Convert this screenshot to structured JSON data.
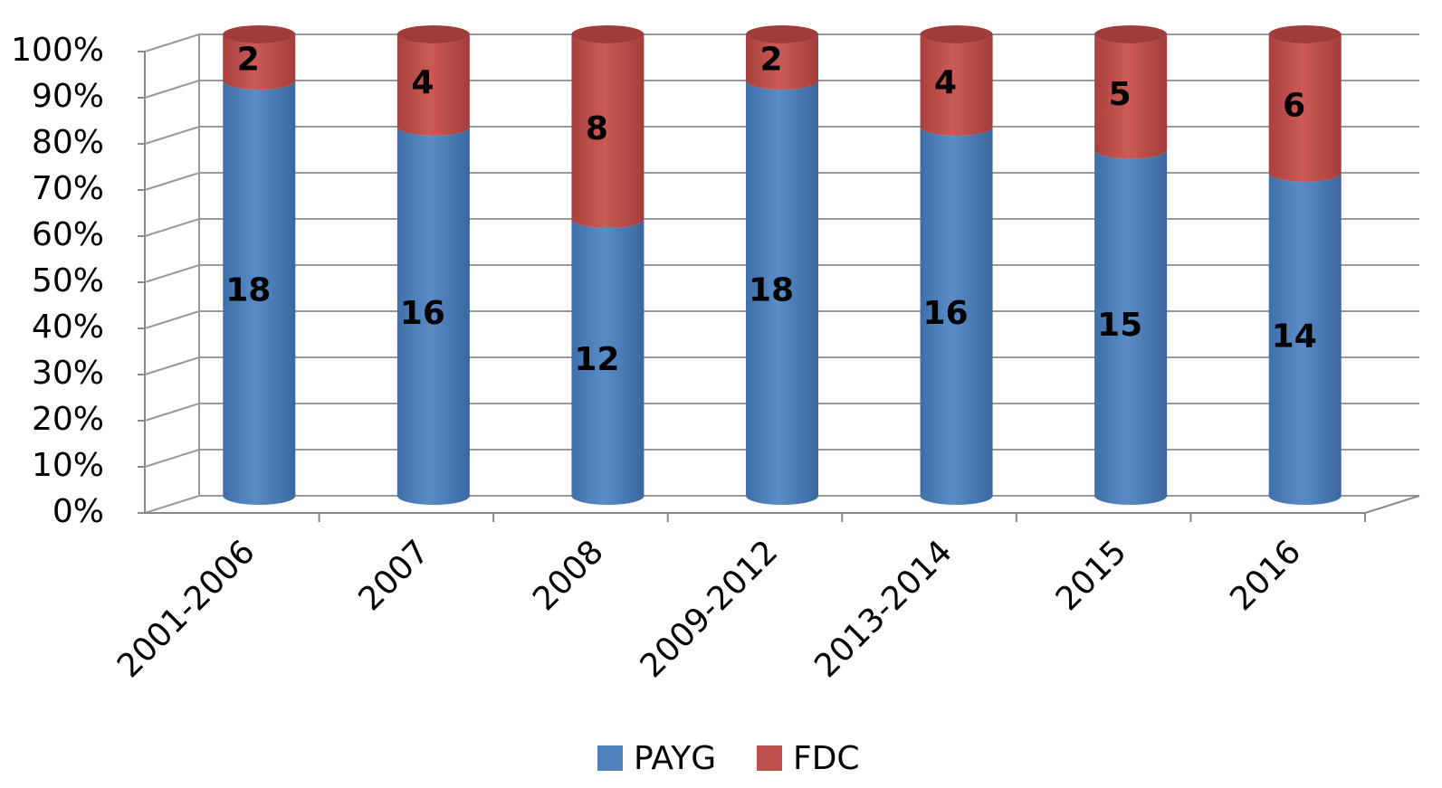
{
  "chart_data": {
    "type": "bar",
    "stacking": "percent",
    "categories": [
      "2001-2006",
      "2007",
      "2008",
      "2009-2012",
      "2013-2014",
      "2015",
      "2016"
    ],
    "series": [
      {
        "name": "PAYG",
        "color": "#4f81bd",
        "values": [
          18,
          16,
          12,
          18,
          16,
          15,
          14
        ]
      },
      {
        "name": "FDC",
        "color": "#c0504d",
        "values": [
          2,
          4,
          8,
          2,
          4,
          5,
          6
        ]
      }
    ],
    "ylim": [
      0,
      100
    ],
    "yticks": [
      {
        "value": 0,
        "label": "0%"
      },
      {
        "value": 10,
        "label": "10%"
      },
      {
        "value": 20,
        "label": "20%"
      },
      {
        "value": 30,
        "label": "30%"
      },
      {
        "value": 40,
        "label": "40%"
      },
      {
        "value": 50,
        "label": "50%"
      },
      {
        "value": 60,
        "label": "60%"
      },
      {
        "value": 70,
        "label": "70%"
      },
      {
        "value": 80,
        "label": "80%"
      },
      {
        "value": 90,
        "label": "90%"
      },
      {
        "value": 100,
        "label": "100%"
      }
    ],
    "grid": true,
    "legend": "bottom"
  }
}
